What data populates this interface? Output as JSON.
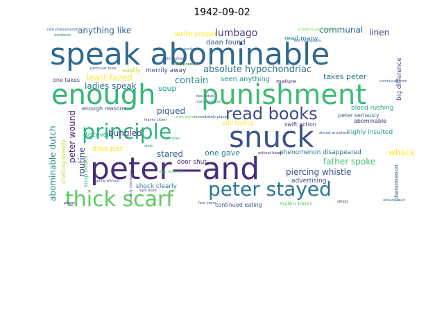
{
  "chart_data": {
    "type": "wordcloud",
    "title": "1942-09-02",
    "words": [
      {
        "text": "speak abominable",
        "color": "#31688e"
      },
      {
        "text": "enough",
        "color": "#35b779"
      },
      {
        "text": "punishment",
        "color": "#3fbc73"
      },
      {
        "text": "snuck",
        "color": "#3b528b"
      },
      {
        "text": "peter—and",
        "color": "#472d7b"
      },
      {
        "text": "principle",
        "color": "#2db27d"
      },
      {
        "text": "thick scarf",
        "color": "#5ec962"
      },
      {
        "text": "peter stayed",
        "color": "#2a788e"
      },
      {
        "text": "read books",
        "color": "#3e4a89"
      },
      {
        "text": "absolute hypochondriac",
        "color": "#2c728e"
      },
      {
        "text": "anything like",
        "color": "#33638d"
      },
      {
        "text": "write proper",
        "color": "#fde725"
      },
      {
        "text": "lumbago",
        "color": "#433e85"
      },
      {
        "text": "communal",
        "color": "#31688e"
      },
      {
        "text": "linen",
        "color": "#443a83"
      },
      {
        "text": "least fazed",
        "color": "#fde725"
      },
      {
        "text": "daan found",
        "color": "#39568c"
      },
      {
        "text": "read many",
        "color": "#25858e"
      },
      {
        "text": "ladies speak",
        "color": "#2c728e"
      },
      {
        "text": "merrily away",
        "color": "#433e85"
      },
      {
        "text": "vastly",
        "color": "#c2df23"
      },
      {
        "text": "contain",
        "color": "#21918c"
      },
      {
        "text": "seen anything",
        "color": "#21918c"
      },
      {
        "text": "takes peter",
        "color": "#2a788e"
      },
      {
        "text": "one takes",
        "color": "#3e4a89"
      },
      {
        "text": "soup",
        "color": "#1f9e89"
      },
      {
        "text": "mature",
        "color": "#482878"
      },
      {
        "text": "peter wound",
        "color": "#481f70"
      },
      {
        "text": "piqued",
        "color": "#3b528b"
      },
      {
        "text": "enough reasons",
        "color": "#3e4a89"
      },
      {
        "text": "blood rushing",
        "color": "#21a685"
      },
      {
        "text": "routine",
        "color": "#3e4a89"
      },
      {
        "text": "peter seriously",
        "color": "#33638d"
      },
      {
        "text": "abominable dutch",
        "color": "#228c8d"
      },
      {
        "text": "still trying",
        "color": "#fde725"
      },
      {
        "text": "highly insulted",
        "color": "#1f9e89"
      },
      {
        "text": "swift action",
        "color": "#482878"
      },
      {
        "text": "abominable",
        "color": "#472d7b"
      },
      {
        "text": "bungled",
        "color": "#404688"
      },
      {
        "text": "discovers",
        "color": "#29af7f"
      },
      {
        "text": "also par",
        "color": "#fde725"
      },
      {
        "text": "stared",
        "color": "#32658e"
      },
      {
        "text": "door shut",
        "color": "#482878"
      },
      {
        "text": "one gave",
        "color": "#2a788e"
      },
      {
        "text": "father spoke",
        "color": "#44bf70"
      },
      {
        "text": "whack",
        "color": "#fde725"
      },
      {
        "text": "phenomenon disappeared",
        "color": "#2c728e"
      },
      {
        "text": "soup books",
        "color": "#35b779"
      },
      {
        "text": "piercing whistle",
        "color": "#3b528b"
      },
      {
        "text": "advertising",
        "color": "#3e4a89"
      },
      {
        "text": "big difference",
        "color": "#3e4a89"
      },
      {
        "text": "shock clearly",
        "color": "#287c8e"
      },
      {
        "text": "chatting merrily",
        "color": "#c2df23"
      },
      {
        "text": "continued eating",
        "color": "#3b528b"
      },
      {
        "text": "sullen looks",
        "color": "#5ec962"
      },
      {
        "text": "phenomenon",
        "color": "#3b528b"
      },
      {
        "text": "particular book",
        "color": "#3b528b"
      },
      {
        "text": "quite mother",
        "color": "#3e4a89"
      },
      {
        "text": "ever since",
        "color": "#5ec962"
      },
      {
        "text": "many services",
        "color": "#2a788e"
      },
      {
        "text": "really much",
        "color": "#482878"
      },
      {
        "text": "two ladies",
        "color": "#3e4a89"
      },
      {
        "text": "four years",
        "color": "#3e4a89"
      },
      {
        "text": "shoe removed",
        "color": "#5ec962"
      },
      {
        "text": "right word",
        "color": "#3e4a89"
      },
      {
        "text": "stole",
        "color": "#21918c"
      },
      {
        "text": "family words",
        "color": "#2a788e"
      },
      {
        "text": "intellectually advanced",
        "color": "#7ad151"
      },
      {
        "text": "rare phenomenon",
        "color": "#3e4a89"
      },
      {
        "text": "accidents",
        "color": "#2a788e"
      },
      {
        "text": "going without",
        "color": "#3b528b"
      },
      {
        "text": "vastly interesting",
        "color": "#3b528b"
      },
      {
        "text": "please",
        "color": "#482878"
      },
      {
        "text": "simply",
        "color": "#472d7b"
      },
      {
        "text": "almost anywhere",
        "color": "#3b528b"
      },
      {
        "text": "communal linen",
        "color": "#3e4a89"
      },
      {
        "text": "without blown",
        "color": "#482878"
      },
      {
        "text": "forbidden",
        "color": "#35b779"
      },
      {
        "text": "leaves closer",
        "color": "#3e4a89"
      },
      {
        "text": "immediately piqued",
        "color": "#3e4a89"
      },
      {
        "text": "lest youngsters",
        "color": "#3e4a89"
      },
      {
        "text": "help anyway",
        "color": "#5ec962"
      },
      {
        "text": "already read",
        "color": "#2a788e"
      },
      {
        "text": "suitable ones",
        "color": "#3b528b"
      }
    ]
  }
}
